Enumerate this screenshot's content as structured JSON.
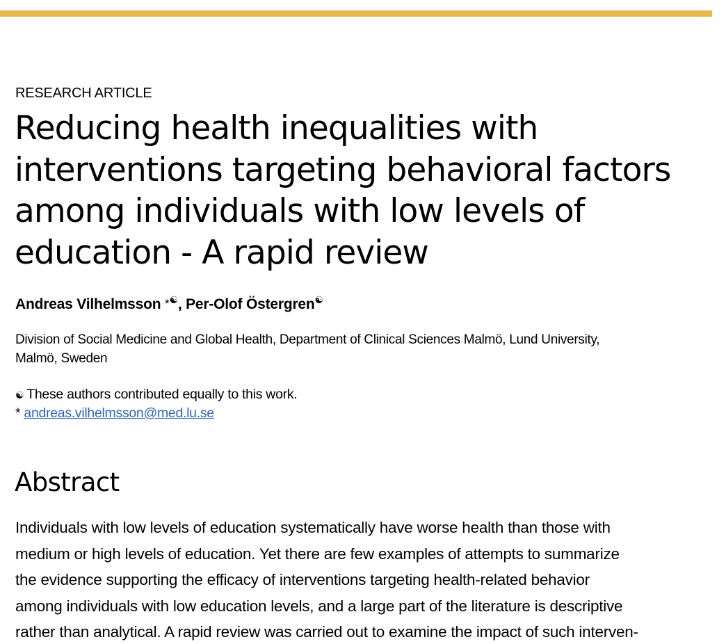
{
  "colors": {
    "accent_bar": "#e8b84a",
    "link": "#3366bb",
    "text": "#000000"
  },
  "article": {
    "type": "RESEARCH ARTICLE",
    "title_lines": [
      "Reducing health inequalities with",
      "interventions targeting behavioral factors",
      "among individuals with low levels of",
      "education - A rapid review"
    ]
  },
  "authors": {
    "author1": "Andreas Vilhelmsson",
    "author1_marks": "*",
    "separator": ", ",
    "author2": "Per-Olof Östergren",
    "equal_contrib_symbol": "☯"
  },
  "affiliation": {
    "lines": [
      "Division of Social Medicine and Global Health, Department of Clinical Sciences Malmö, Lund University,",
      "Malmö, Sweden"
    ]
  },
  "notes": {
    "equal_contribution": "These authors contributed equally to this work.",
    "corresponding_star": "*",
    "email": "andreas.vilhelmsson@med.lu.se"
  },
  "abstract": {
    "heading": "Abstract",
    "lines": [
      "Individuals with low levels of education systematically have worse health than those with",
      "medium or high levels of education. Yet there are few examples of attempts to summarize",
      "the evidence supporting the efficacy of interventions targeting health-related behavior",
      "among individuals with low education levels, and a large part of the literature is descriptive",
      "rather than analytical. A rapid review was carried out to examine the impact of such interven-"
    ]
  }
}
